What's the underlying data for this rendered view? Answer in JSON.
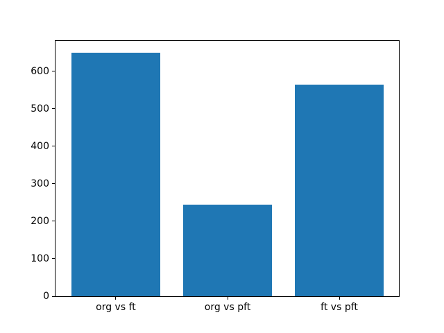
{
  "chart_data": {
    "type": "bar",
    "categories": [
      "org vs ft",
      "org vs pft",
      "ft vs pft"
    ],
    "values": [
      650,
      245,
      565
    ],
    "title": "",
    "xlabel": "",
    "ylabel": "",
    "yticks": [
      0,
      100,
      200,
      300,
      400,
      500,
      600
    ],
    "ylim": [
      0,
      682.5
    ],
    "xlim": [
      -0.54,
      2.54
    ],
    "bar_width": 0.8,
    "bar_color": "#1f77b4",
    "grid": false,
    "legend": null
  },
  "figure": {
    "background": "#ffffff",
    "axes_background": "#ffffff",
    "spine_color": "#000000",
    "tick_color": "#000000",
    "tick_label_color": "#000000"
  }
}
